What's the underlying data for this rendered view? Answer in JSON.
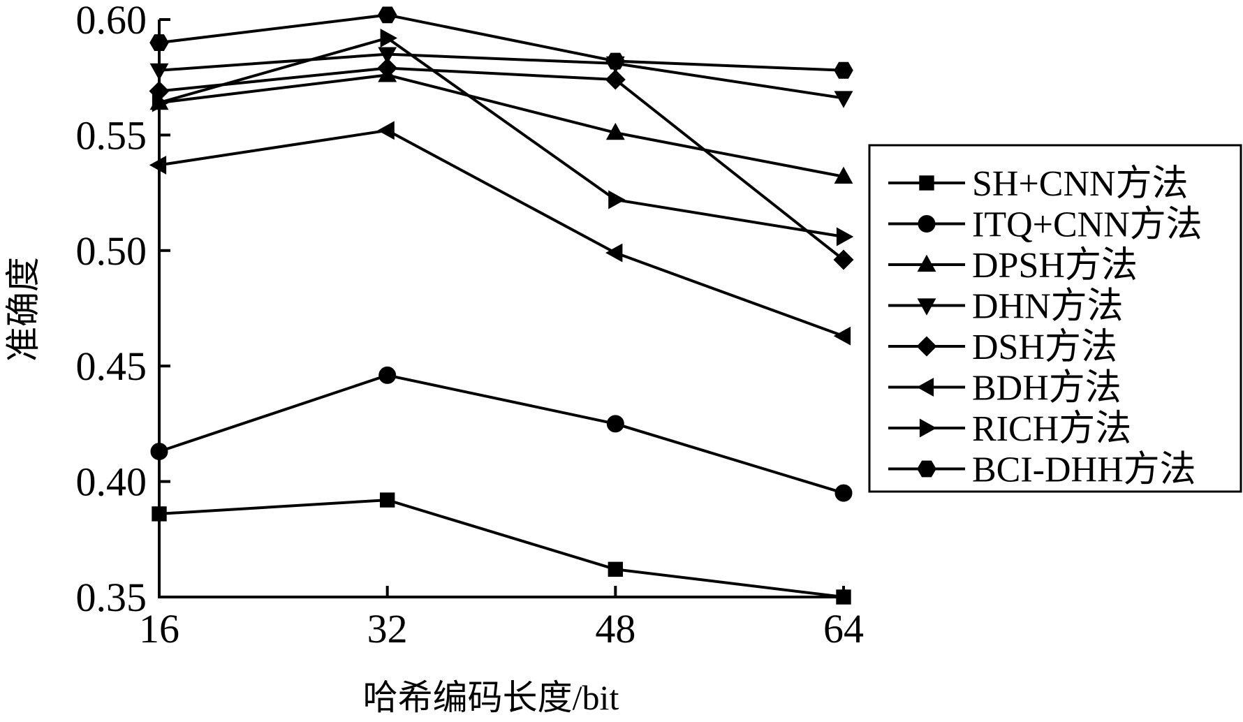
{
  "chart_data": {
    "type": "line",
    "xlabel": "哈希编码长度/bit",
    "ylabel": "准确度",
    "x": [
      16,
      32,
      48,
      64
    ],
    "xticks": [
      "16",
      "32",
      "48",
      "64"
    ],
    "yticks": [
      "0.35",
      "0.40",
      "0.45",
      "0.50",
      "0.55",
      "0.60"
    ],
    "ylim": [
      0.35,
      0.6
    ],
    "grid": false,
    "legend_position": "right",
    "series": [
      {
        "name": "SH+CNN方法",
        "marker": "square",
        "values": [
          0.386,
          0.392,
          0.362,
          0.35
        ]
      },
      {
        "name": "ITQ+CNN方法",
        "marker": "circle",
        "values": [
          0.413,
          0.446,
          0.425,
          0.395
        ]
      },
      {
        "name": "DPSH方法",
        "marker": "triangle-up",
        "values": [
          0.564,
          0.576,
          0.551,
          0.532
        ]
      },
      {
        "name": "DHN方法",
        "marker": "triangle-down",
        "values": [
          0.578,
          0.585,
          0.581,
          0.566
        ]
      },
      {
        "name": "DSH方法",
        "marker": "diamond",
        "values": [
          0.569,
          0.579,
          0.574,
          0.496
        ]
      },
      {
        "name": "BDH方法",
        "marker": "triangle-left",
        "values": [
          0.537,
          0.552,
          0.499,
          0.463
        ]
      },
      {
        "name": "RICH方法",
        "marker": "triangle-right",
        "values": [
          0.564,
          0.592,
          0.522,
          0.506
        ]
      },
      {
        "name": "BCI-DHH方法",
        "marker": "hexagon",
        "values": [
          0.59,
          0.602,
          0.582,
          0.578
        ]
      }
    ]
  }
}
